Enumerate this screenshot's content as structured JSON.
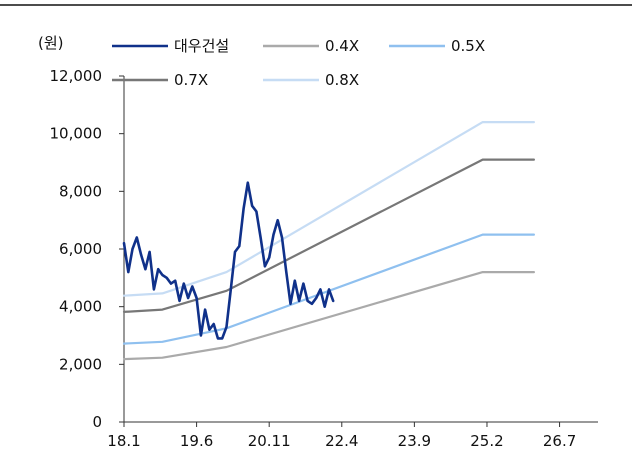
{
  "chart_data": {
    "type": "line",
    "unit_label": "(원)",
    "title": "",
    "xlabel": "",
    "ylabel": "",
    "x_ticks": [
      "18.1",
      "19.6",
      "20.11",
      "22.4",
      "23.9",
      "25.2",
      "26.7"
    ],
    "x_range": [
      "2018-01",
      "2027-04"
    ],
    "y_ticks": [
      "0",
      "2,000",
      "4,000",
      "6,000",
      "8,000",
      "10,000",
      "12,000"
    ],
    "ylim": [
      0,
      12000
    ],
    "grid": false,
    "legend_position": "top",
    "series": [
      {
        "name": "대우건설",
        "color": "#10318a",
        "values": [
          [
            "2018-01",
            6200
          ],
          [
            "2018-02",
            5200
          ],
          [
            "2018-03",
            6000
          ],
          [
            "2018-04",
            6400
          ],
          [
            "2018-05",
            5800
          ],
          [
            "2018-06",
            5300
          ],
          [
            "2018-07",
            5900
          ],
          [
            "2018-08",
            4600
          ],
          [
            "2018-09",
            5300
          ],
          [
            "2018-10",
            5100
          ],
          [
            "2018-11",
            5000
          ],
          [
            "2018-12",
            4800
          ],
          [
            "2019-01",
            4900
          ],
          [
            "2019-02",
            4200
          ],
          [
            "2019-03",
            4800
          ],
          [
            "2019-04",
            4300
          ],
          [
            "2019-05",
            4700
          ],
          [
            "2019-06",
            4300
          ],
          [
            "2019-07",
            3000
          ],
          [
            "2019-08",
            3900
          ],
          [
            "2019-09",
            3200
          ],
          [
            "2019-10",
            3400
          ],
          [
            "2019-11",
            2900
          ],
          [
            "2019-12",
            2900
          ],
          [
            "2020-01",
            3300
          ],
          [
            "2020-02",
            4600
          ],
          [
            "2020-03",
            5900
          ],
          [
            "2020-04",
            6100
          ],
          [
            "2020-05",
            7400
          ],
          [
            "2020-06",
            8300
          ],
          [
            "2020-07",
            7500
          ],
          [
            "2020-08",
            7300
          ],
          [
            "2020-09",
            6400
          ],
          [
            "2020-10",
            5400
          ],
          [
            "2020-11",
            5700
          ],
          [
            "2020-12",
            6500
          ],
          [
            "2021-01",
            7000
          ],
          [
            "2021-02",
            6400
          ],
          [
            "2021-03",
            5200
          ],
          [
            "2021-04",
            4100
          ],
          [
            "2021-05",
            4900
          ],
          [
            "2021-06",
            4200
          ],
          [
            "2021-07",
            4800
          ],
          [
            "2021-08",
            4200
          ],
          [
            "2021-09",
            4100
          ],
          [
            "2021-10",
            4300
          ],
          [
            "2021-11",
            4600
          ],
          [
            "2021-12",
            4000
          ],
          [
            "2022-01",
            4600
          ],
          [
            "2022-02",
            4200
          ]
        ]
      },
      {
        "name": "0.4X",
        "color": "#aaaaaa",
        "values": [
          [
            "2018-01",
            2180
          ],
          [
            "2018-10",
            2230
          ],
          [
            "2020-01",
            2600
          ],
          [
            "2025-01",
            5200
          ],
          [
            "2026-01",
            5200
          ]
        ]
      },
      {
        "name": "0.5X",
        "color": "#8fc0ef",
        "values": [
          [
            "2018-01",
            2720
          ],
          [
            "2018-10",
            2780
          ],
          [
            "2020-01",
            3250
          ],
          [
            "2025-01",
            6500
          ],
          [
            "2026-01",
            6500
          ]
        ]
      },
      {
        "name": "0.7X",
        "color": "#777777",
        "values": [
          [
            "2018-01",
            3820
          ],
          [
            "2018-10",
            3900
          ],
          [
            "2020-01",
            4550
          ],
          [
            "2025-01",
            9100
          ],
          [
            "2026-01",
            9100
          ]
        ]
      },
      {
        "name": "0.8X",
        "color": "#c6dcf4",
        "values": [
          [
            "2018-01",
            4380
          ],
          [
            "2018-10",
            4460
          ],
          [
            "2020-01",
            5200
          ],
          [
            "2025-01",
            10400
          ],
          [
            "2026-01",
            10400
          ]
        ]
      }
    ]
  }
}
